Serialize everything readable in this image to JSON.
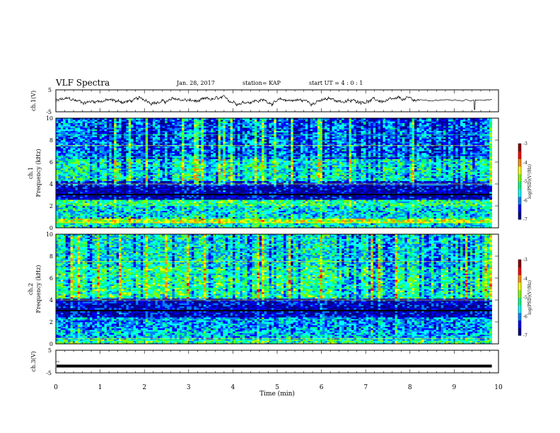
{
  "header": {
    "title": "VLF Spectra",
    "date": "Jan. 28, 2017",
    "station": "station= KAP",
    "start_ut": "start UT =  4 : 0 : 1"
  },
  "colorbar": {
    "label": "log(PSD)(V²/Hz)",
    "ticks": [
      "-3",
      "-4",
      "-5",
      "-6",
      "-7"
    ],
    "colors": [
      "#8b0000",
      "#ff0000",
      "#ff8c00",
      "#ffff00",
      "#7fff00",
      "#00ff7f",
      "#00ffff",
      "#0080ff",
      "#0000ff",
      "#00008b"
    ]
  },
  "chart_data": [
    {
      "type": "line",
      "panel": "ch1-waveform",
      "ylabel": "ch.1(V)",
      "ylim": [
        -5,
        5
      ],
      "yticks": [
        "5",
        "-5"
      ],
      "xlim": [
        0,
        10
      ],
      "note_x_extent": 9.85
    },
    {
      "type": "heatmap",
      "panel": "ch1-spectrogram",
      "ylabel": "ch.1\nFrequency (kHz)",
      "ylim": [
        0,
        10
      ],
      "yticks": [
        "0",
        "2",
        "4",
        "6",
        "8",
        "10"
      ],
      "xlim": [
        0,
        10
      ],
      "x_extent": 9.85,
      "bands": [
        {
          "from": 0.0,
          "to": 0.4,
          "level": -5.5
        },
        {
          "from": 0.4,
          "to": 0.9,
          "level": -4.6
        },
        {
          "from": 0.9,
          "to": 2.0,
          "level": -5.6
        },
        {
          "from": 2.0,
          "to": 2.6,
          "level": -5.2
        },
        {
          "from": 2.6,
          "to": 3.8,
          "level": -6.7
        },
        {
          "from": 3.8,
          "to": 4.3,
          "level": -6.3
        },
        {
          "from": 4.3,
          "to": 6.3,
          "level": -5.4
        },
        {
          "from": 6.3,
          "to": 10.0,
          "level": -6.0
        }
      ]
    },
    {
      "type": "heatmap",
      "panel": "ch2-spectrogram",
      "ylabel": "ch.2\nFrequency (kHz)",
      "ylim": [
        0,
        10
      ],
      "yticks": [
        "0",
        "2",
        "4",
        "6",
        "8",
        "10"
      ],
      "xlim": [
        0,
        10
      ],
      "x_extent": 9.85,
      "bands": [
        {
          "from": 0.0,
          "to": 0.5,
          "level": -5.2
        },
        {
          "from": 0.5,
          "to": 1.3,
          "level": -5.7
        },
        {
          "from": 1.3,
          "to": 2.5,
          "level": -5.9
        },
        {
          "from": 2.5,
          "to": 3.6,
          "level": -6.6
        },
        {
          "from": 3.6,
          "to": 4.2,
          "level": -6.5
        },
        {
          "from": 4.2,
          "to": 7.0,
          "level": -5.2
        },
        {
          "from": 7.0,
          "to": 10.0,
          "level": -5.5
        }
      ]
    },
    {
      "type": "line",
      "panel": "ch3-waveform",
      "ylabel": "ch.3(V)",
      "ylim": [
        -5,
        5
      ],
      "yticks": [
        "5",
        "-5"
      ],
      "xlim": [
        0,
        10
      ],
      "x_extent": 9.85,
      "constant_value": -2
    }
  ],
  "xaxis": {
    "label": "Time (min)",
    "ticks": [
      "0",
      "1",
      "2",
      "3",
      "4",
      "5",
      "6",
      "7",
      "8",
      "9",
      "10"
    ]
  }
}
